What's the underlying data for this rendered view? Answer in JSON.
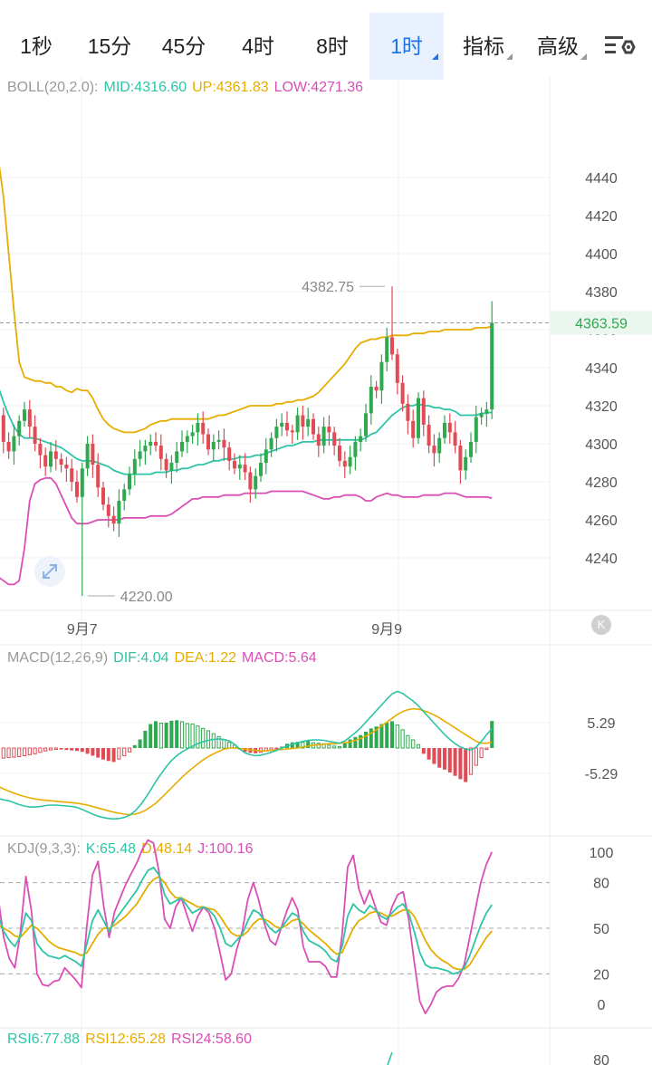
{
  "tabs": [
    {
      "label": "1秒",
      "active": false,
      "dropdown": false
    },
    {
      "label": "15分",
      "active": false,
      "dropdown": false
    },
    {
      "label": "45分",
      "active": false,
      "dropdown": false
    },
    {
      "label": "4时",
      "active": false,
      "dropdown": false
    },
    {
      "label": "8时",
      "active": false,
      "dropdown": false
    },
    {
      "label": "1时",
      "active": true,
      "dropdown": true
    },
    {
      "label": "指标",
      "active": false,
      "dropdown": true
    },
    {
      "label": "高级",
      "active": false,
      "dropdown": true
    }
  ],
  "settings_icon": "chart-settings-icon",
  "expand_icon": "expand-arrows-icon",
  "boll": {
    "label": "BOLL(20,2.0):",
    "mid": "MID:4316.60",
    "up": "UP:4361.83",
    "low": "LOW:4271.36"
  },
  "macd": {
    "label": "MACD(12,26,9)",
    "dif": "DIF:4.04",
    "dea": "DEA:1.22",
    "macd": "MACD:5.64"
  },
  "kdj": {
    "label": "KDJ(9,3,3):",
    "k": "K:65.48",
    "d": "D:48.14",
    "j": "J:100.16"
  },
  "rsi": {
    "r6": "RSI6:77.88",
    "r12": "RSI12:65.28",
    "r24": "RSI24:58.60"
  },
  "colors": {
    "up": "#2fa84f",
    "down": "#e04b55",
    "mid": "#2ec4a6",
    "upper": "#e6ad00",
    "lower": "#d94fb5",
    "accent": "#1e73e8"
  },
  "chart_data": {
    "type": "candlestick",
    "main": {
      "y_ticks": [
        4440,
        4420,
        4400,
        4380,
        4360,
        4340,
        4320,
        4300,
        4280,
        4260,
        4240
      ],
      "ylim": [
        4222,
        4456
      ],
      "current_price": "4363.59",
      "high_annotation": {
        "label": "4382.75",
        "value": 4382.75
      },
      "low_annotation": {
        "label": "4220.00",
        "value": 4220.0
      },
      "x_labels": [
        {
          "label": "9月7",
          "index": 16
        },
        {
          "label": "9月9",
          "index": 74
        }
      ],
      "closes": [
        4315,
        4301,
        4296,
        4304,
        4312,
        4318,
        4309,
        4300,
        4294,
        4288,
        4296,
        4292,
        4289,
        4287,
        4280,
        4272,
        4287,
        4300,
        4289,
        4277,
        4268,
        4262,
        4258,
        4270,
        4276,
        4284,
        4292,
        4296,
        4299,
        4301,
        4299,
        4292,
        4286,
        4290,
        4296,
        4301,
        4304,
        4306,
        4311,
        4305,
        4297,
        4301,
        4302,
        4298,
        4291,
        4287,
        4289,
        4285,
        4276,
        4283,
        4290,
        4297,
        4303,
        4309,
        4311,
        4307,
        4306,
        4315,
        4309,
        4313,
        4305,
        4299,
        4309,
        4306,
        4299,
        4291,
        4288,
        4293,
        4301,
        4304,
        4316,
        4330,
        4328,
        4343,
        4356,
        4347,
        4332,
        4321,
        4312,
        4303,
        4324,
        4310,
        4299,
        4295,
        4303,
        4311,
        4306,
        4299,
        4286,
        4293,
        4301,
        4314,
        4316,
        4318,
        4363.59
      ],
      "mid": [
        4330,
        4322,
        4315,
        4309,
        4305,
        4303,
        4303,
        4303,
        4302,
        4301,
        4300,
        4299,
        4298,
        4296,
        4294,
        4292,
        4291,
        4291,
        4291,
        4290,
        4289,
        4288,
        4286,
        4285,
        4284,
        4284,
        4284,
        4284,
        4284,
        4284,
        4285,
        4285,
        4285,
        4286,
        4286,
        4287,
        4287,
        4288,
        4289,
        4289,
        4290,
        4291,
        4291,
        4292,
        4292,
        4292,
        4293,
        4293,
        4293,
        4294,
        4294,
        4295,
        4296,
        4297,
        4298,
        4299,
        4299,
        4300,
        4301,
        4301,
        4301,
        4302,
        4302,
        4302,
        4302,
        4302,
        4302,
        4302,
        4302,
        4302,
        4303,
        4305,
        4306,
        4309,
        4312,
        4315,
        4317,
        4319,
        4320,
        4320,
        4321,
        4320,
        4320,
        4319,
        4319,
        4318,
        4318,
        4317,
        4315,
        4315,
        4315,
        4315,
        4316,
        4316,
        4316.6
      ],
      "upper": [
        4450,
        4430,
        4400,
        4370,
        4343,
        4335,
        4334,
        4333,
        4333,
        4332,
        4332,
        4330,
        4330,
        4328,
        4327,
        4329,
        4328,
        4328,
        4324,
        4318,
        4313,
        4310,
        4308,
        4307,
        4306,
        4306,
        4306,
        4307,
        4308,
        4310,
        4311,
        4312,
        4312,
        4313,
        4313,
        4313,
        4313,
        4313,
        4313,
        4313,
        4313,
        4314,
        4315,
        4315,
        4316,
        4317,
        4318,
        4319,
        4320,
        4320,
        4320,
        4320,
        4320,
        4321,
        4321,
        4322,
        4322,
        4323,
        4323,
        4324,
        4325,
        4327,
        4330,
        4333,
        4336,
        4339,
        4342,
        4346,
        4350,
        4353,
        4354,
        4355,
        4355,
        4356,
        4356,
        4357,
        4357,
        4357,
        4357,
        4358,
        4358,
        4358,
        4359,
        4359,
        4359,
        4360,
        4360,
        4360,
        4360,
        4360,
        4360,
        4361,
        4361,
        4361,
        4361.83
      ],
      "lower": [
        4230,
        4228,
        4226,
        4226,
        4228,
        4245,
        4270,
        4279,
        4281,
        4282,
        4282,
        4279,
        4273,
        4267,
        4261,
        4258,
        4258,
        4258,
        4259,
        4260,
        4260,
        4260,
        4260,
        4260,
        4261,
        4261,
        4261,
        4261,
        4261,
        4262,
        4262,
        4262,
        4262,
        4263,
        4265,
        4267,
        4269,
        4271,
        4271,
        4272,
        4272,
        4272,
        4272,
        4273,
        4273,
        4273,
        4273,
        4274,
        4274,
        4274,
        4274,
        4274,
        4275,
        4275,
        4275,
        4275,
        4275,
        4275,
        4275,
        4274,
        4273,
        4272,
        4271,
        4271,
        4272,
        4272,
        4273,
        4273,
        4273,
        4272,
        4270,
        4270,
        4272,
        4273,
        4274,
        4273,
        4273,
        4272,
        4272,
        4272,
        4272,
        4273,
        4273,
        4273,
        4273,
        4274,
        4274,
        4274,
        4273,
        4272,
        4272,
        4272,
        4272,
        4272,
        4271.36
      ]
    },
    "macd_panel": {
      "y_ticks": [
        "5.29",
        "-5.29"
      ],
      "dif": [
        -10.5,
        -10.8,
        -11.0,
        -11.4,
        -11.8,
        -12.1,
        -12.3,
        -12.3,
        -12.2,
        -12.0,
        -11.9,
        -11.9,
        -12.0,
        -12.1,
        -12.2,
        -12.4,
        -12.8,
        -13.3,
        -13.8,
        -14.2,
        -14.5,
        -14.7,
        -14.8,
        -14.7,
        -14.5,
        -14.0,
        -13.2,
        -12.0,
        -10.5,
        -8.8,
        -7.0,
        -5.4,
        -3.9,
        -2.6,
        -1.6,
        -0.8,
        -0.2,
        0.4,
        0.9,
        1.3,
        1.6,
        1.8,
        1.9,
        1.8,
        1.5,
        0.8,
        -0.2,
        -1.0,
        -1.4,
        -1.6,
        -1.5,
        -1.2,
        -0.9,
        -0.5,
        0.0,
        0.4,
        0.8,
        1.1,
        1.4,
        1.6,
        1.7,
        1.7,
        1.6,
        1.4,
        1.2,
        1.0,
        1.5,
        2.3,
        3.2,
        4.2,
        5.4,
        6.6,
        7.8,
        9.0,
        10.2,
        11.3,
        11.8,
        11.4,
        10.6,
        9.8,
        8.8,
        7.6,
        6.4,
        5.2,
        4.0,
        2.8,
        1.8,
        0.9,
        0.2,
        -0.2,
        -0.4,
        0.2,
        1.4,
        2.8,
        4.04
      ],
      "dea": [
        -8.0,
        -8.5,
        -9.0,
        -9.4,
        -9.8,
        -10.1,
        -10.4,
        -10.6,
        -10.8,
        -10.9,
        -11.0,
        -11.1,
        -11.2,
        -11.3,
        -11.4,
        -11.5,
        -11.7,
        -11.9,
        -12.2,
        -12.5,
        -12.8,
        -13.1,
        -13.4,
        -13.6,
        -13.8,
        -13.9,
        -13.8,
        -13.5,
        -13.0,
        -12.3,
        -11.5,
        -10.5,
        -9.4,
        -8.3,
        -7.2,
        -6.1,
        -5.1,
        -4.2,
        -3.3,
        -2.5,
        -1.8,
        -1.2,
        -0.7,
        -0.2,
        0.0,
        0.0,
        -0.1,
        -0.2,
        -0.4,
        -0.5,
        -0.6,
        -0.6,
        -0.5,
        -0.4,
        -0.3,
        -0.2,
        -0.1,
        0.0,
        0.2,
        0.4,
        0.6,
        0.7,
        0.8,
        0.9,
        0.9,
        1.0,
        1.1,
        1.3,
        1.6,
        2.0,
        2.5,
        3.1,
        3.8,
        4.6,
        5.4,
        6.2,
        7.0,
        7.6,
        8.0,
        8.2,
        8.1,
        7.8,
        7.4,
        6.9,
        6.3,
        5.6,
        4.9,
        4.2,
        3.5,
        2.8,
        2.1,
        1.4,
        1.0,
        1.0,
        1.22
      ],
      "hist": [
        -2.2,
        -2.1,
        -2.0,
        -1.9,
        -1.8,
        -1.6,
        -1.4,
        -1.2,
        -0.9,
        -0.6,
        -0.4,
        -0.3,
        -0.3,
        -0.4,
        -0.5,
        -0.6,
        -0.8,
        -1.2,
        -1.6,
        -2.0,
        -2.4,
        -2.7,
        -2.9,
        -2.3,
        -1.6,
        -0.8,
        0.6,
        1.8,
        3.6,
        5.0,
        5.6,
        5.2,
        5.3,
        5.7,
        5.8,
        5.5,
        5.1,
        5.0,
        4.6,
        4.1,
        3.6,
        3.0,
        2.4,
        1.7,
        1.2,
        0.6,
        -0.3,
        -0.8,
        -1.0,
        -1.1,
        -0.9,
        -0.6,
        -0.4,
        -0.2,
        0.3,
        0.9,
        1.2,
        1.3,
        1.2,
        1.5,
        1.1,
        1.0,
        0.9,
        0.6,
        0.4,
        0.3,
        1.0,
        1.8,
        2.3,
        2.7,
        3.4,
        4.1,
        4.5,
        5.0,
        5.3,
        5.6,
        4.8,
        3.8,
        2.6,
        1.7,
        0.7,
        -1.2,
        -2.4,
        -3.3,
        -4.1,
        -4.5,
        -5.1,
        -5.8,
        -6.5,
        -7.1,
        -5.5,
        -3.6,
        -2.0,
        -0.3,
        5.64
      ]
    },
    "kdj_panel": {
      "y_ticks": [
        100,
        80,
        50,
        20,
        0
      ],
      "k": [
        58,
        48,
        42,
        38,
        45,
        60,
        55,
        40,
        35,
        32,
        31,
        30,
        32,
        30,
        28,
        25,
        40,
        55,
        62,
        55,
        48,
        55,
        60,
        65,
        70,
        75,
        82,
        88,
        90,
        85,
        72,
        66,
        68,
        70,
        65,
        60,
        62,
        64,
        62,
        58,
        50,
        40,
        38,
        42,
        46,
        55,
        62,
        60,
        55,
        50,
        47,
        50,
        55,
        60,
        58,
        48,
        42,
        40,
        38,
        35,
        30,
        28,
        38,
        58,
        66,
        62,
        60,
        65,
        62,
        58,
        56,
        60,
        64,
        66,
        60,
        48,
        34,
        26,
        24,
        24,
        23,
        22,
        20,
        21,
        24,
        32,
        42,
        52,
        60,
        65.48
      ],
      "d": [
        52,
        50,
        48,
        45,
        44,
        48,
        52,
        50,
        46,
        42,
        39,
        37,
        36,
        35,
        34,
        32,
        34,
        40,
        46,
        50,
        50,
        52,
        55,
        58,
        62,
        66,
        72,
        78,
        82,
        84,
        80,
        74,
        70,
        70,
        68,
        66,
        64,
        64,
        63,
        62,
        58,
        52,
        47,
        45,
        45,
        48,
        53,
        56,
        56,
        54,
        51,
        50,
        52,
        55,
        56,
        53,
        49,
        46,
        43,
        40,
        36,
        33,
        34,
        42,
        50,
        55,
        57,
        60,
        61,
        60,
        58,
        58,
        60,
        62,
        62,
        58,
        50,
        42,
        36,
        32,
        29,
        27,
        24,
        23,
        23,
        26,
        32,
        38,
        44,
        48.14
      ],
      "j": [
        70,
        44,
        30,
        24,
        47,
        84,
        61,
        20,
        13,
        12,
        15,
        16,
        24,
        20,
        16,
        11,
        52,
        85,
        94,
        65,
        44,
        61,
        70,
        79,
        86,
        93,
        102,
        108,
        106,
        87,
        56,
        50,
        64,
        70,
        59,
        48,
        58,
        64,
        60,
        50,
        34,
        16,
        20,
        36,
        48,
        69,
        80,
        68,
        53,
        42,
        39,
        50,
        61,
        70,
        62,
        38,
        28,
        28,
        28,
        25,
        18,
        18,
        46,
        90,
        98,
        76,
        66,
        75,
        64,
        54,
        52,
        64,
        72,
        74,
        56,
        28,
        2,
        -6,
        0,
        8,
        11,
        12,
        12,
        17,
        26,
        44,
        62,
        80,
        92,
        100.16
      ]
    }
  }
}
